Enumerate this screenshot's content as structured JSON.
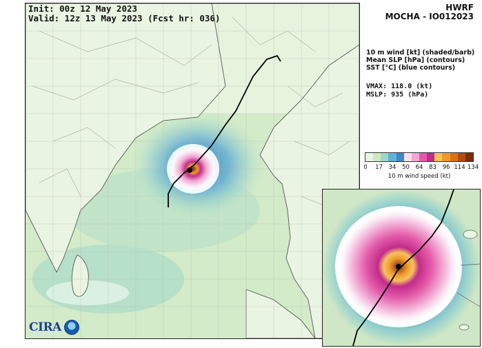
{
  "header": {
    "init": "Init:   00z 12 May 2023",
    "valid": "Valid: 12z 13 May 2023 (Fcst hr: 036)",
    "model": "HWRF",
    "storm": "MOCHA - IO012023"
  },
  "legend": {
    "line1": "10 m wind [kt] (shaded/barb)",
    "line2": "Mean SLP [hPa] (contours)",
    "line3": "SST [°C] (blue contours)"
  },
  "stats": {
    "vmax": "VMAX: 118.0 (kt)",
    "mslp": "MSLP:  935 (hPa)"
  },
  "colorbar": {
    "ticks": [
      "0",
      "17",
      "34",
      "50",
      "64",
      "83",
      "96",
      "114",
      "134"
    ],
    "label": "10 m wind speed (kt)",
    "colors": [
      "#e8f5e0",
      "#cde9c4",
      "#9fd6c8",
      "#5fb4d6",
      "#3f87c6",
      "#f7dff0",
      "#f2a9d4",
      "#e35aa8",
      "#c22c8a",
      "#f6c25e",
      "#ee9a2c",
      "#d8721a",
      "#b04c10",
      "#7a2d08"
    ]
  },
  "logos": {
    "cira": "CIRA",
    "noaa": "noaa-logo"
  }
}
